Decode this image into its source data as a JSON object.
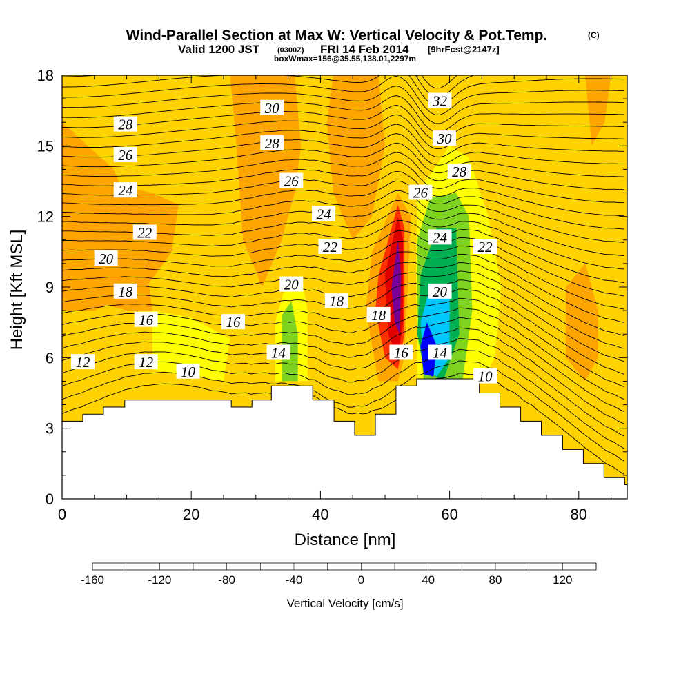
{
  "title_main": "Wind-Parallel Section at Max W: Vertical Velocity & Pot.Temp.",
  "title_copyright": "(C)",
  "subtitle_valid": "Valid 1200 JST",
  "subtitle_zulu": "(0300Z)",
  "subtitle_date": "FRI 14 Feb 2014",
  "subtitle_fcst": "[9hrFcst@2147z]",
  "subtitle_box": "boxWmax=156@35.55,138.01,2297m",
  "chart_data": {
    "type": "heatmap",
    "xlabel": "Distance [nm]",
    "ylabel": "Height [Kft MSL]",
    "xlim": [
      0,
      87.5
    ],
    "ylim": [
      0,
      18
    ],
    "x_ticks": [
      "0",
      "20",
      "40",
      "60",
      "80"
    ],
    "y_ticks": [
      "0",
      "3",
      "6",
      "9",
      "12",
      "15",
      "18"
    ],
    "colorbar_label": "Vertical Velocity [cm/s]",
    "colorbar_ticks": [
      "-160",
      "-120",
      "-80",
      "-40",
      "0",
      "40",
      "80",
      "120"
    ],
    "colorbar_range": [
      -160,
      140
    ],
    "colorbar_colors": [
      "#0000ff",
      "#0a64ff",
      "#00c8ff",
      "#00e0c0",
      "#00b050",
      "#14b414",
      "#7ed320",
      "#ffff00",
      "#ffd200",
      "#ffa500",
      "#ff7800",
      "#ff3000",
      "#e00000",
      "#b4003c",
      "#780096"
    ],
    "background_color": "#ffd200",
    "theta_contour_labels": [
      {
        "text": "32",
        "x": 58.5,
        "y": 16.9
      },
      {
        "text": "30",
        "x": 32.5,
        "y": 16.6
      },
      {
        "text": "28",
        "x": 9.8,
        "y": 15.9
      },
      {
        "text": "30",
        "x": 59.2,
        "y": 15.3
      },
      {
        "text": "28",
        "x": 32.5,
        "y": 15.1
      },
      {
        "text": "26",
        "x": 9.8,
        "y": 14.6
      },
      {
        "text": "28",
        "x": 61.5,
        "y": 13.9
      },
      {
        "text": "26",
        "x": 35.5,
        "y": 13.5
      },
      {
        "text": "26",
        "x": 55.5,
        "y": 13.0
      },
      {
        "text": "24",
        "x": 9.8,
        "y": 13.1
      },
      {
        "text": "24",
        "x": 40.5,
        "y": 12.1
      },
      {
        "text": "22",
        "x": 12.8,
        "y": 11.3
      },
      {
        "text": "24",
        "x": 58.5,
        "y": 11.1
      },
      {
        "text": "22",
        "x": 41.5,
        "y": 10.7
      },
      {
        "text": "22",
        "x": 65.5,
        "y": 10.7
      },
      {
        "text": "20",
        "x": 6.8,
        "y": 10.2
      },
      {
        "text": "20",
        "x": 35.5,
        "y": 9.1
      },
      {
        "text": "18",
        "x": 9.8,
        "y": 8.8
      },
      {
        "text": "20",
        "x": 58.5,
        "y": 8.8
      },
      {
        "text": "18",
        "x": 42.5,
        "y": 8.4
      },
      {
        "text": "18",
        "x": 49.0,
        "y": 7.8
      },
      {
        "text": "16",
        "x": 13.0,
        "y": 7.6
      },
      {
        "text": "16",
        "x": 26.5,
        "y": 7.5
      },
      {
        "text": "14",
        "x": 33.5,
        "y": 6.2
      },
      {
        "text": "16",
        "x": 52.5,
        "y": 6.2
      },
      {
        "text": "14",
        "x": 58.5,
        "y": 6.2
      },
      {
        "text": "12",
        "x": 3.2,
        "y": 5.8
      },
      {
        "text": "12",
        "x": 13.0,
        "y": 5.8
      },
      {
        "text": "10",
        "x": 19.5,
        "y": 5.4
      },
      {
        "text": "10",
        "x": 65.5,
        "y": 5.2
      }
    ],
    "terrain_profile": [
      {
        "x": 0.0,
        "y": 3.3
      },
      {
        "x": 3.2,
        "y": 3.6
      },
      {
        "x": 6.4,
        "y": 3.9
      },
      {
        "x": 9.7,
        "y": 4.2
      },
      {
        "x": 26.2,
        "y": 3.9
      },
      {
        "x": 29.4,
        "y": 4.2
      },
      {
        "x": 32.4,
        "y": 4.8
      },
      {
        "x": 38.8,
        "y": 4.2
      },
      {
        "x": 42.1,
        "y": 3.3
      },
      {
        "x": 45.3,
        "y": 2.7
      },
      {
        "x": 48.5,
        "y": 3.6
      },
      {
        "x": 51.7,
        "y": 4.8
      },
      {
        "x": 54.9,
        "y": 5.1
      },
      {
        "x": 64.6,
        "y": 4.5
      },
      {
        "x": 67.8,
        "y": 3.9
      },
      {
        "x": 71.0,
        "y": 3.3
      },
      {
        "x": 74.2,
        "y": 2.7
      },
      {
        "x": 77.5,
        "y": 2.1
      },
      {
        "x": 80.7,
        "y": 1.5
      },
      {
        "x": 83.9,
        "y": 0.9
      },
      {
        "x": 87.1,
        "y": 0.6
      }
    ],
    "w_regions": [
      {
        "value": 20,
        "polygon": [
          [
            0,
            16
          ],
          [
            4,
            15
          ],
          [
            8,
            14
          ],
          [
            11,
            12
          ],
          [
            13,
            10
          ],
          [
            14,
            8
          ],
          [
            10,
            8
          ],
          [
            4,
            8.5
          ],
          [
            0,
            9
          ]
        ]
      },
      {
        "value": 20,
        "polygon": [
          [
            0,
            13
          ],
          [
            6,
            13.5
          ],
          [
            14,
            13
          ],
          [
            18,
            12.5
          ],
          [
            17,
            10.5
          ],
          [
            13,
            9
          ],
          [
            5,
            8
          ],
          [
            0,
            8
          ]
        ]
      },
      {
        "value": 20,
        "polygon": [
          [
            26,
            18
          ],
          [
            36,
            18
          ],
          [
            37,
            15
          ],
          [
            36,
            13
          ],
          [
            34,
            11
          ],
          [
            31,
            9
          ],
          [
            28,
            11
          ],
          [
            27,
            15
          ]
        ]
      },
      {
        "value": 20,
        "polygon": [
          [
            42,
            18
          ],
          [
            49,
            18
          ],
          [
            50,
            15
          ],
          [
            48,
            12
          ],
          [
            45,
            11
          ],
          [
            42,
            13
          ],
          [
            41,
            16
          ]
        ]
      },
      {
        "value": 20,
        "polygon": [
          [
            81,
            18
          ],
          [
            85,
            18
          ],
          [
            84,
            16
          ],
          [
            82,
            15
          ]
        ]
      },
      {
        "value": 20,
        "polygon": [
          [
            78,
            9
          ],
          [
            81,
            10
          ],
          [
            83,
            8
          ],
          [
            83,
            6
          ],
          [
            81,
            5
          ],
          [
            78,
            6
          ]
        ]
      },
      {
        "value": 20,
        "polygon": [
          [
            48,
            10.5
          ],
          [
            52,
            13
          ],
          [
            54,
            12
          ],
          [
            53,
            6
          ],
          [
            52,
            5
          ],
          [
            49,
            5
          ],
          [
            47,
            8
          ]
        ]
      },
      {
        "value": 60,
        "polygon": [
          [
            49,
            9.5
          ],
          [
            52,
            12.5
          ],
          [
            53,
            11.5
          ],
          [
            53,
            7
          ],
          [
            52,
            5.5
          ],
          [
            50,
            6
          ],
          [
            48.5,
            8
          ]
        ]
      },
      {
        "value": 90,
        "polygon": [
          [
            50,
            9.5
          ],
          [
            52,
            12
          ],
          [
            52.8,
            11
          ],
          [
            52.8,
            7.5
          ],
          [
            52,
            6
          ],
          [
            50.5,
            7
          ]
        ]
      },
      {
        "value": 120,
        "polygon": [
          [
            51,
            9
          ],
          [
            52,
            11
          ],
          [
            52.5,
            9.5
          ],
          [
            52.3,
            7
          ],
          [
            51.5,
            7.5
          ]
        ]
      },
      {
        "value": -10,
        "polygon": [
          [
            33,
            7.5
          ],
          [
            34.5,
            9
          ],
          [
            37,
            9.5
          ],
          [
            38,
            8
          ],
          [
            38,
            5
          ],
          [
            33,
            5
          ]
        ]
      },
      {
        "value": -10,
        "polygon": [
          [
            14,
            8
          ],
          [
            20,
            7.7
          ],
          [
            26,
            6.8
          ],
          [
            25,
            5
          ],
          [
            14,
            5.5
          ]
        ]
      },
      {
        "value": -10,
        "polygon": [
          [
            55,
            13
          ],
          [
            60,
            15
          ],
          [
            63,
            14.5
          ],
          [
            66,
            12
          ],
          [
            68,
            9
          ],
          [
            67,
            6
          ],
          [
            65,
            5
          ],
          [
            55,
            5
          ],
          [
            54.8,
            10
          ]
        ]
      },
      {
        "value": -40,
        "polygon": [
          [
            55,
            11
          ],
          [
            57,
            12.8
          ],
          [
            61,
            13
          ],
          [
            63,
            12
          ],
          [
            63.5,
            8
          ],
          [
            62,
            5
          ],
          [
            56,
            5
          ],
          [
            55,
            8
          ]
        ]
      },
      {
        "value": -70,
        "polygon": [
          [
            55.5,
            9.5
          ],
          [
            58,
            11.5
          ],
          [
            61,
            11.5
          ],
          [
            61.5,
            7
          ],
          [
            59,
            5
          ],
          [
            56,
            5.5
          ],
          [
            55,
            7
          ]
        ]
      },
      {
        "value": -110,
        "polygon": [
          [
            55.5,
            7.5
          ],
          [
            57,
            9
          ],
          [
            60,
            9
          ],
          [
            60,
            6
          ],
          [
            58,
            5.2
          ],
          [
            56,
            5.5
          ]
        ]
      },
      {
        "value": -150,
        "polygon": [
          [
            55.5,
            6.5
          ],
          [
            56.5,
            7.5
          ],
          [
            58,
            6.5
          ],
          [
            57.5,
            5.2
          ],
          [
            56,
            5.3
          ]
        ]
      },
      {
        "value": -40,
        "polygon": [
          [
            34,
            7.8
          ],
          [
            35.5,
            8.4
          ],
          [
            36.5,
            7
          ],
          [
            36.5,
            5
          ],
          [
            34,
            5
          ]
        ]
      }
    ]
  }
}
